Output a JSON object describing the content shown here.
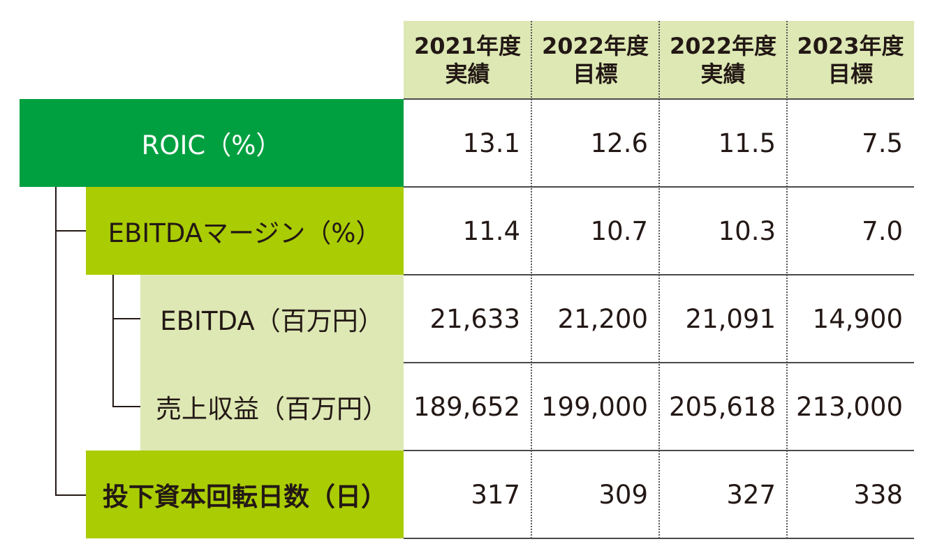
{
  "columns": [
    {
      "line1": "2021年度",
      "line2": "実績"
    },
    {
      "line1": "2022年度",
      "line2": "目標"
    },
    {
      "line1": "2022年度",
      "line2": "実績"
    },
    {
      "line1": "2023年度",
      "line2": "目標"
    }
  ],
  "rows": [
    {
      "label": "ROIC（%）",
      "values": [
        "13.1",
        "12.6",
        "11.5",
        "7.5"
      ]
    },
    {
      "label": "EBITDAマージン（%）",
      "values": [
        "11.4",
        "10.7",
        "10.3",
        "7.0"
      ]
    },
    {
      "label": "EBITDA（百万円）",
      "values": [
        "21,633",
        "21,200",
        "21,091",
        "14,900"
      ]
    },
    {
      "label": "売上収益（百万円）",
      "values": [
        "189,652",
        "199,000",
        "205,618",
        "213,000"
      ]
    },
    {
      "label": "投下資本回転日数（日）",
      "values": [
        "317",
        "309",
        "327",
        "338"
      ]
    }
  ],
  "colors": {
    "roic_fill": "#00a040",
    "level1_fill": "#aacc03",
    "level2_fill": "#dde8b4",
    "header_fill": "#dde8b4"
  }
}
